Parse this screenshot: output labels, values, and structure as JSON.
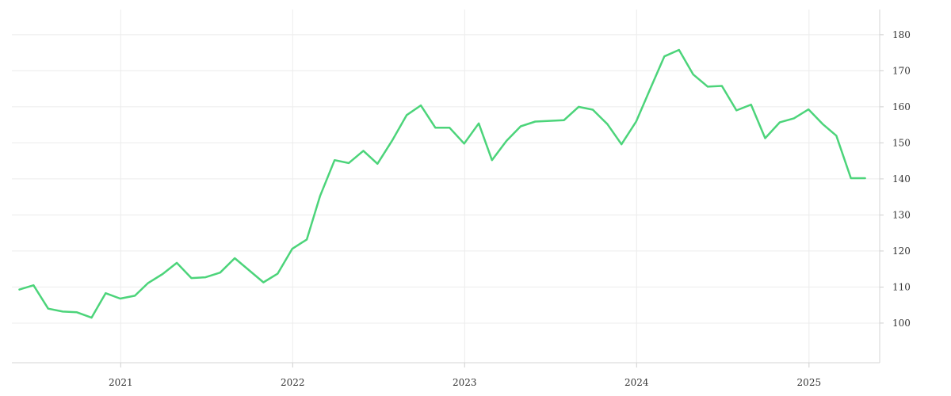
{
  "chart_data": {
    "type": "line",
    "title": "",
    "xlabel": "",
    "ylabel": "",
    "x_ticks": [
      "2021",
      "2022",
      "2023",
      "2024",
      "2025"
    ],
    "y_ticks": [
      100,
      110,
      120,
      130,
      140,
      150,
      160,
      170,
      180
    ],
    "ylim": [
      89,
      187
    ],
    "xlim": [
      "2020-05-15",
      "2025-05-31"
    ],
    "grid": true,
    "y_axis_side": "right",
    "line_color": "#4cd47a",
    "series": [
      {
        "x": [
          "2020-05-31",
          "2020-06-30",
          "2020-07-31",
          "2020-08-31",
          "2020-09-30",
          "2020-10-31",
          "2020-11-30",
          "2020-12-31",
          "2021-01-31",
          "2021-02-28",
          "2021-03-31",
          "2021-04-30",
          "2021-05-31",
          "2021-06-30",
          "2021-07-31",
          "2021-08-31",
          "2021-09-30",
          "2021-10-31",
          "2021-11-30",
          "2021-12-31",
          "2022-01-31",
          "2022-02-28",
          "2022-03-31",
          "2022-04-30",
          "2022-05-31",
          "2022-06-30",
          "2022-07-31",
          "2022-08-31",
          "2022-09-30",
          "2022-10-31",
          "2022-11-30",
          "2022-12-31",
          "2023-01-31",
          "2023-02-28",
          "2023-03-31",
          "2023-04-30",
          "2023-05-31",
          "2023-06-30",
          "2023-07-31",
          "2023-08-31",
          "2023-09-30",
          "2023-10-31",
          "2023-11-30",
          "2023-12-31",
          "2024-01-31",
          "2024-02-29",
          "2024-03-31",
          "2024-04-30",
          "2024-05-31",
          "2024-06-30",
          "2024-07-31",
          "2024-08-31",
          "2024-09-30",
          "2024-10-31",
          "2024-11-30",
          "2024-12-31",
          "2025-01-31",
          "2025-02-28",
          "2025-03-31",
          "2025-04-30"
        ],
        "y": [
          109.3,
          110.5,
          104.0,
          103.2,
          103.0,
          101.5,
          108.3,
          106.8,
          107.6,
          111.1,
          113.6,
          116.7,
          112.5,
          112.7,
          114.0,
          118.0,
          114.7,
          111.3,
          113.7,
          120.6,
          123.2,
          135.2,
          145.2,
          144.4,
          147.8,
          144.2,
          150.6,
          157.7,
          160.4,
          154.2,
          154.2,
          149.8,
          155.4,
          145.2,
          150.6,
          154.6,
          155.9,
          156.1,
          156.3,
          160.0,
          159.2,
          155.2,
          149.6,
          155.9,
          165.3,
          174.0,
          175.8,
          169.0,
          165.6,
          165.8,
          159.0,
          160.6,
          151.3,
          155.7,
          156.8,
          159.3,
          155.1,
          152.0,
          140.2,
          140.2
        ]
      }
    ]
  }
}
